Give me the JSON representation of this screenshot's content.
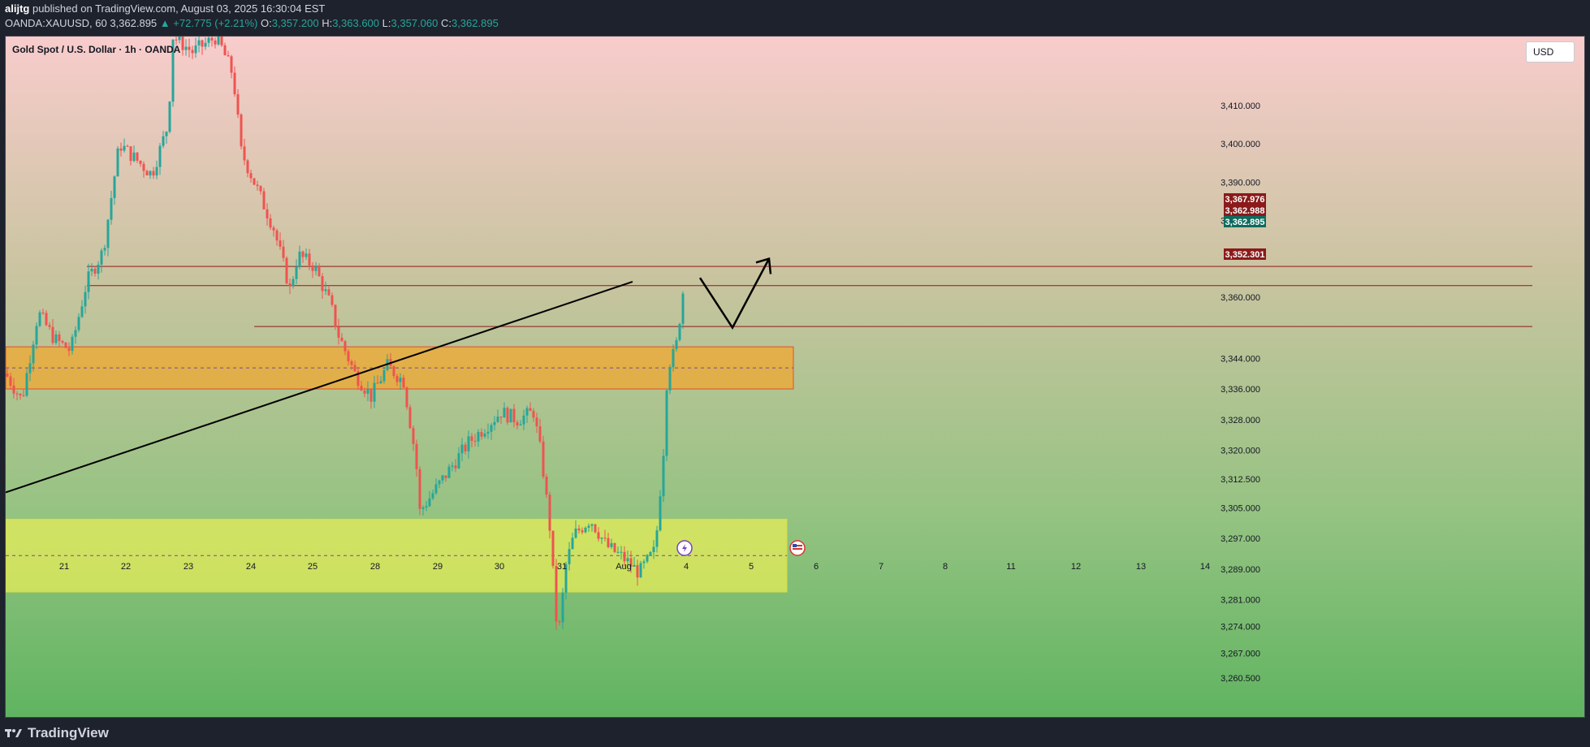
{
  "header": {
    "author": "alijtg",
    "published_text": "published on TradingView.com, August 03, 2025 16:30:04 EST",
    "symbol": "OANDA:XAUUSD, 60",
    "last_price": "3,362.895",
    "change": "▲ +72.775 (+2.21%)",
    "o_label": "O:",
    "o_value": "3,357.200",
    "h_label": "H:",
    "h_value": "3,363.600",
    "l_label": "L:",
    "l_value": "3,357.060",
    "c_label": "C:",
    "c_value": "3,362.895"
  },
  "chart": {
    "title": "Gold Spot / U.S. Dollar · 1h · OANDA",
    "currency_button": "USD",
    "price_ticks": [
      "3,410.000",
      "3,400.000",
      "3,390.000",
      "3,380.000",
      "3,360.000",
      "3,344.000",
      "3,336.000",
      "3,328.000",
      "3,320.000",
      "3,312.500",
      "3,305.000",
      "3,297.000",
      "3,289.000",
      "3,281.000",
      "3,274.000",
      "3,267.000",
      "3,260.500"
    ],
    "date_ticks": [
      "21",
      "22",
      "23",
      "24",
      "25",
      "28",
      "29",
      "30",
      "31",
      "Aug",
      "4",
      "5",
      "6",
      "7",
      "8",
      "11",
      "12",
      "13",
      "14"
    ],
    "price_labels": [
      {
        "text": "3,367.976",
        "color": "#8b1a1a"
      },
      {
        "text": "3,362.988",
        "color": "#8b1a1a"
      },
      {
        "text": "3,362.895",
        "color": "#0f6b5e"
      },
      {
        "text": "3,352.301",
        "color": "#8b1a1a"
      }
    ],
    "event_icons": [
      "lightning-icon",
      "us-flag-icon"
    ]
  },
  "chart_data": {
    "type": "candlestick",
    "y_scale": "price",
    "ylim": [
      3258,
      3428
    ],
    "zones": [
      {
        "name": "resistance-zone",
        "from": 3336,
        "to": 3347,
        "color": "#f0a830"
      },
      {
        "name": "support-zone",
        "from": 3283,
        "to": 3302,
        "color": "#e6ec5a"
      }
    ],
    "horizontal_levels": [
      3367.976,
      3362.988,
      3352.301
    ],
    "up_color": "#26a69a",
    "down_color": "#ef5350"
  },
  "footer": {
    "brand": "TradingView"
  }
}
